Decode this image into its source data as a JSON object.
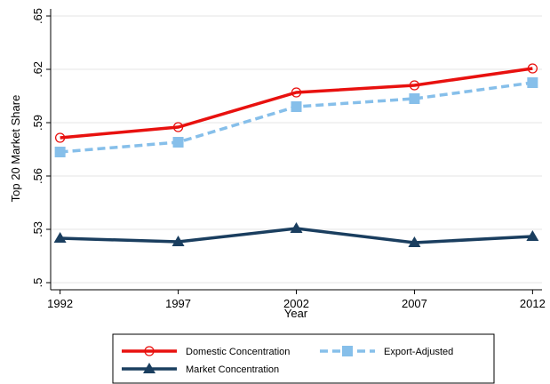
{
  "chart_data": {
    "type": "line",
    "x_label": "Year",
    "y_label": "Top 20 Market Share",
    "x": [
      1992,
      1997,
      2002,
      2007,
      2012
    ],
    "xlim": [
      1991.6,
      2012.4
    ],
    "xticks": [
      1992,
      1997,
      2002,
      2007,
      2012
    ],
    "ylim": [
      0.496,
      0.654
    ],
    "yticks": [
      {
        "value": 0.5,
        "label": ".5"
      },
      {
        "value": 0.53,
        "label": ".53"
      },
      {
        "value": 0.56,
        "label": ".56"
      },
      {
        "value": 0.59,
        "label": ".59"
      },
      {
        "value": 0.62,
        "label": ".62"
      },
      {
        "value": 0.65,
        "label": ".65"
      }
    ],
    "grid": true,
    "series": [
      {
        "name": "Domestic Concentration",
        "color": "#e8110f",
        "marker": "circle",
        "dashed": false,
        "values": [
          0.5815,
          0.5875,
          0.607,
          0.611,
          0.6205
        ]
      },
      {
        "name": "Export-Adjusted",
        "color": "#86bfea",
        "marker": "square",
        "dashed": true,
        "values": [
          0.5735,
          0.579,
          0.599,
          0.6035,
          0.6125
        ]
      },
      {
        "name": "Market Concentration",
        "color": "#1a3e5f",
        "marker": "triangle",
        "dashed": false,
        "values": [
          0.525,
          0.523,
          0.5305,
          0.5225,
          0.526
        ]
      }
    ]
  }
}
